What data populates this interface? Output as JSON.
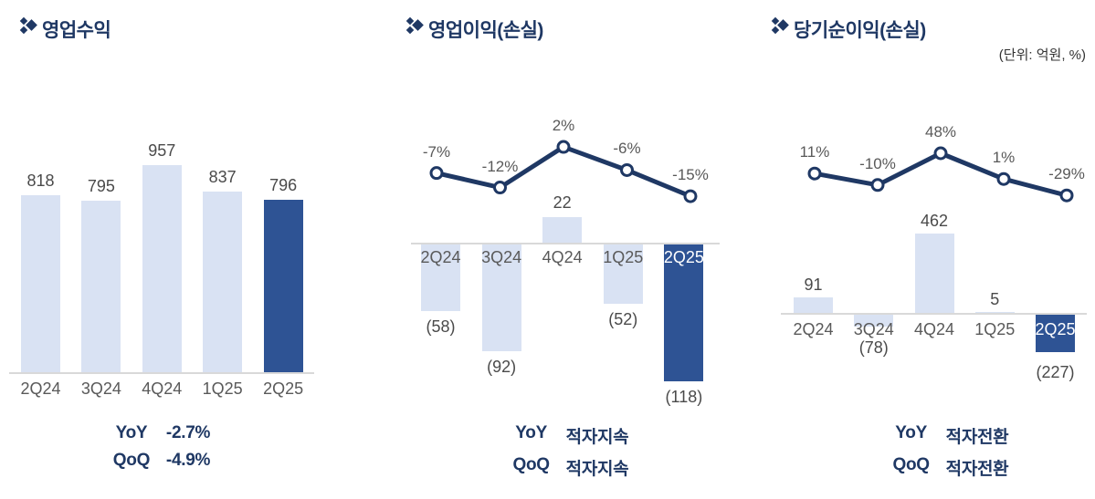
{
  "unit_note": "(단위: 억원, %)",
  "footer_labels": {
    "yoy": "YoY",
    "qoq": "QoQ"
  },
  "colors": {
    "navy": "#1f3864",
    "bar_light": "#d9e2f3",
    "bar_dark": "#2e5394",
    "line": "#1f3864",
    "text_gray": "#595959",
    "axis_gray": "#d9d9d9"
  },
  "chart_data": [
    {
      "type": "bar",
      "title": "영업수익",
      "categories": [
        "2Q24",
        "3Q24",
        "4Q24",
        "1Q25",
        "2Q25"
      ],
      "values": [
        818,
        795,
        957,
        837,
        796
      ],
      "value_labels": [
        "818",
        "795",
        "957",
        "837",
        "796"
      ],
      "highlight_index": 4,
      "ylim": [
        0,
        1000
      ],
      "legend": "none",
      "grid": "off",
      "yoy": "-2.7%",
      "qoq": "-4.9%"
    },
    {
      "type": "bar+line",
      "title": "영업이익(손실)",
      "categories": [
        "2Q24",
        "3Q24",
        "4Q24",
        "1Q25",
        "2Q25"
      ],
      "series": [
        {
          "name": "operating-profit",
          "type": "bar",
          "values": [
            -58,
            -92,
            22,
            -52,
            -118
          ],
          "labels": [
            "(58)",
            "(92)",
            "22",
            "(52)",
            "(118)"
          ]
        },
        {
          "name": "pct-change",
          "type": "line",
          "values": [
            -7,
            -12,
            2,
            -6,
            -15
          ],
          "labels": [
            "-7%",
            "-12%",
            "2%",
            "-6%",
            "-15%"
          ]
        }
      ],
      "highlight_index": 4,
      "legend": "none",
      "grid": "off",
      "yoy": "적자지속",
      "qoq": "적자지속"
    },
    {
      "type": "bar+line",
      "title": "당기순이익(손실)",
      "categories": [
        "2Q24",
        "3Q24",
        "4Q24",
        "1Q25",
        "2Q25"
      ],
      "series": [
        {
          "name": "net-income",
          "type": "bar",
          "values": [
            91,
            -78,
            462,
            5,
            -227
          ],
          "labels": [
            "91",
            "(78)",
            "462",
            "5",
            "(227)"
          ]
        },
        {
          "name": "pct-change",
          "type": "line",
          "values": [
            11,
            -10,
            48,
            1,
            -29
          ],
          "labels": [
            "11%",
            "-10%",
            "48%",
            "1%",
            "-29%"
          ]
        }
      ],
      "highlight_index": 4,
      "legend": "none",
      "grid": "off",
      "yoy": "적자전환",
      "qoq": "적자전환"
    }
  ]
}
